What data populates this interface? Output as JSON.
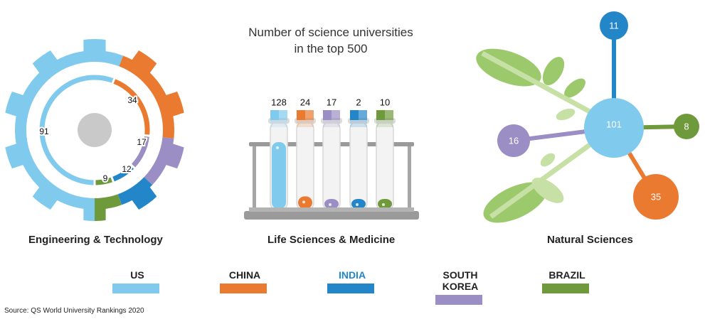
{
  "title_line1": "Number of science universities",
  "title_line2": "in the top 500",
  "source": "Source: QS World University Rankings 2020",
  "colors": {
    "US": "#7fcaed",
    "CHINA": "#ea7a30",
    "INDIA": "#2386c9",
    "SOUTH KOREA": "#9b8ec4",
    "BRAZIL": "#6f9a3c"
  },
  "legend": [
    {
      "label": "US",
      "key": "US"
    },
    {
      "label": "CHINA",
      "key": "CHINA"
    },
    {
      "label": "INDIA",
      "key": "INDIA"
    },
    {
      "label": "SOUTH KOREA",
      "key": "SOUTH KOREA"
    },
    {
      "label": "BRAZIL",
      "key": "BRAZIL"
    }
  ],
  "chart_data": [
    {
      "type": "pie",
      "title": "Engineering & Technology",
      "categories": [
        "US",
        "CHINA",
        "SOUTH KOREA",
        "INDIA",
        "BRAZIL"
      ],
      "values": [
        91,
        34,
        17,
        12,
        9
      ]
    },
    {
      "type": "bar",
      "title": "Life Sciences & Medicine",
      "categories": [
        "US",
        "CHINA",
        "SOUTH KOREA",
        "INDIA",
        "BRAZIL"
      ],
      "values": [
        128,
        24,
        17,
        2,
        10
      ]
    },
    {
      "type": "scatter",
      "title": "Natural Sciences",
      "categories": [
        "US",
        "INDIA",
        "BRAZIL",
        "CHINA",
        "SOUTH KOREA"
      ],
      "values": [
        101,
        11,
        8,
        35,
        16
      ]
    }
  ]
}
